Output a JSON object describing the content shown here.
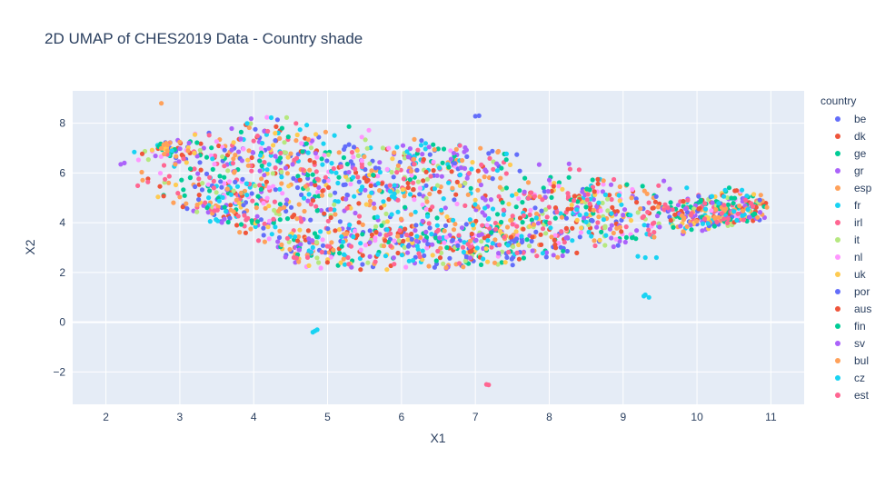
{
  "chart_data": {
    "type": "scatter",
    "title": "2D UMAP of CHES2019 Data - Country shade",
    "xlabel": "X1",
    "ylabel": "X2",
    "xlim": [
      1.55,
      11.45
    ],
    "ylim": [
      -3.3,
      9.3
    ],
    "xticks": [
      2,
      3,
      4,
      5,
      6,
      7,
      8,
      9,
      10,
      11
    ],
    "yticks": [
      -2,
      0,
      2,
      4,
      6,
      8
    ],
    "grid": true,
    "legend_title": "country",
    "legend_position": "right",
    "series": [
      {
        "name": "be",
        "color": "#636efa"
      },
      {
        "name": "dk",
        "color": "#ef553b"
      },
      {
        "name": "ge",
        "color": "#00cc96"
      },
      {
        "name": "gr",
        "color": "#ab63fa"
      },
      {
        "name": "esp",
        "color": "#ffa15a"
      },
      {
        "name": "fr",
        "color": "#19d3f3"
      },
      {
        "name": "irl",
        "color": "#ff6692"
      },
      {
        "name": "it",
        "color": "#b6e880"
      },
      {
        "name": "nl",
        "color": "#ff97ff"
      },
      {
        "name": "uk",
        "color": "#fecb52"
      },
      {
        "name": "por",
        "color": "#636efa"
      },
      {
        "name": "aus",
        "color": "#ef553b"
      },
      {
        "name": "fin",
        "color": "#00cc96"
      },
      {
        "name": "sv",
        "color": "#ab63fa"
      },
      {
        "name": "bul",
        "color": "#ffa15a"
      },
      {
        "name": "cz",
        "color": "#19d3f3"
      },
      {
        "name": "est",
        "color": "#ff6692"
      }
    ],
    "approx_points_per_series": 120,
    "clusters": [
      {
        "x": 4.0,
        "y": 6.6,
        "sx": 0.85,
        "sy": 0.9,
        "w": 3
      },
      {
        "x": 3.6,
        "y": 4.6,
        "sx": 0.5,
        "sy": 0.6,
        "w": 1.5
      },
      {
        "x": 5.5,
        "y": 5.2,
        "sx": 0.9,
        "sy": 1.0,
        "w": 2.5
      },
      {
        "x": 6.5,
        "y": 6.5,
        "sx": 0.8,
        "sy": 0.8,
        "w": 2
      },
      {
        "x": 6.2,
        "y": 3.2,
        "sx": 1.1,
        "sy": 0.6,
        "w": 3
      },
      {
        "x": 4.7,
        "y": 2.8,
        "sx": 0.5,
        "sy": 0.4,
        "w": 1
      },
      {
        "x": 7.6,
        "y": 3.4,
        "sx": 0.8,
        "sy": 0.6,
        "w": 2
      },
      {
        "x": 8.3,
        "y": 5.0,
        "sx": 0.7,
        "sy": 0.6,
        "w": 1.5
      },
      {
        "x": 9.0,
        "y": 4.0,
        "sx": 0.6,
        "sy": 0.6,
        "w": 1.2
      },
      {
        "x": 10.1,
        "y": 4.2,
        "sx": 0.45,
        "sy": 0.5,
        "w": 2
      },
      {
        "x": 10.6,
        "y": 4.5,
        "sx": 0.25,
        "sy": 0.35,
        "w": 1
      },
      {
        "x": 2.8,
        "y": 7.0,
        "sx": 0.25,
        "sy": 0.3,
        "w": 0.6
      }
    ],
    "outliers": [
      {
        "x": 4.83,
        "y": -0.35,
        "series": "fr"
      },
      {
        "x": 4.86,
        "y": -0.3,
        "series": "fr"
      },
      {
        "x": 4.8,
        "y": -0.4,
        "series": "fr"
      },
      {
        "x": 7.15,
        "y": -2.5,
        "series": "irl"
      },
      {
        "x": 7.18,
        "y": -2.52,
        "series": "irl"
      },
      {
        "x": 9.3,
        "y": 1.1,
        "series": "cz"
      },
      {
        "x": 9.35,
        "y": 1.0,
        "series": "cz"
      },
      {
        "x": 9.28,
        "y": 1.05,
        "series": "cz"
      },
      {
        "x": 2.75,
        "y": 8.8,
        "series": "esp"
      },
      {
        "x": 2.25,
        "y": 6.4,
        "series": "gr"
      },
      {
        "x": 2.2,
        "y": 6.35,
        "series": "gr"
      },
      {
        "x": 7.05,
        "y": 8.3,
        "series": "be"
      },
      {
        "x": 7.0,
        "y": 8.28,
        "series": "be"
      },
      {
        "x": 9.3,
        "y": 2.6,
        "series": "fr"
      },
      {
        "x": 9.45,
        "y": 2.6,
        "series": "fr"
      },
      {
        "x": 9.2,
        "y": 2.65,
        "series": "fr"
      }
    ]
  }
}
